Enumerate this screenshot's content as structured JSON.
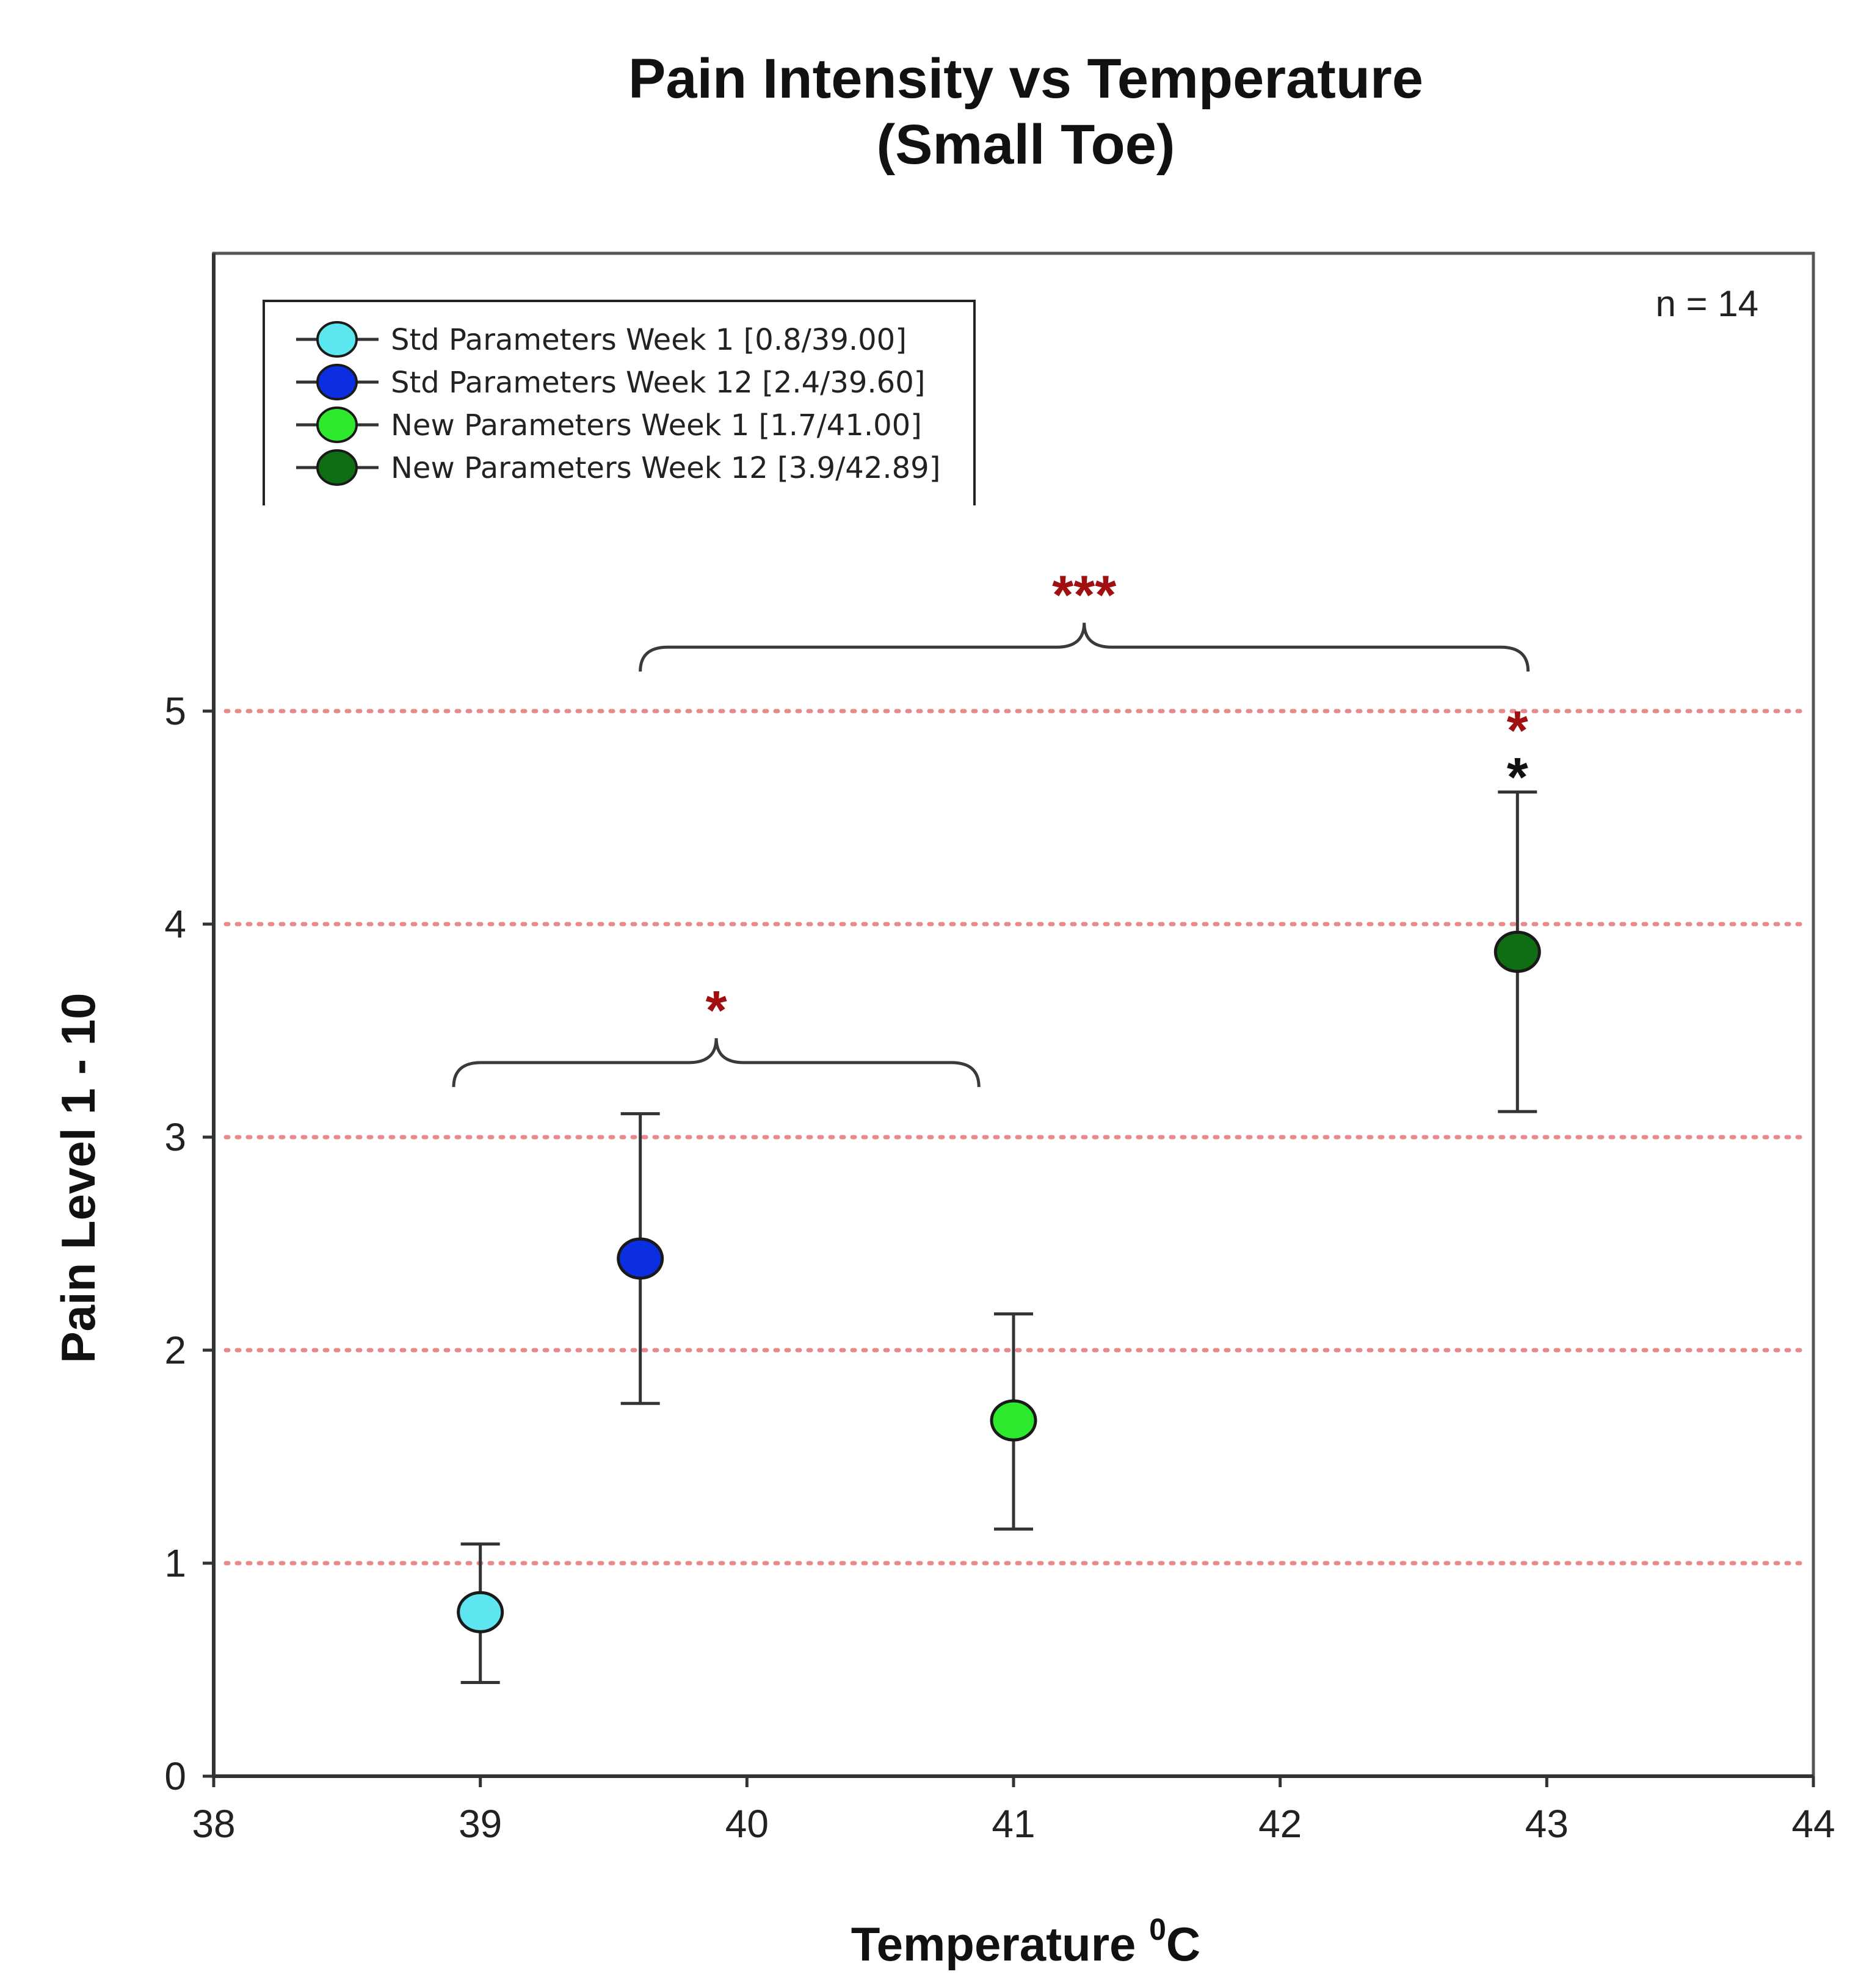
{
  "chart_data": {
    "type": "scatter",
    "title_line1": "Pain Intensity vs Temperature",
    "title_line2": "(Small Toe)",
    "xlabel_main": "Temperature ",
    "xlabel_sup": "0",
    "xlabel_unit": "C",
    "ylabel": "Pain Level 1 - 10",
    "xlim": [
      38,
      44
    ],
    "ylim": [
      0,
      7
    ],
    "xticks": [
      38,
      39,
      40,
      41,
      42,
      43,
      44
    ],
    "yticks": [
      0,
      1,
      2,
      3,
      4,
      5
    ],
    "gridlines_y": [
      1,
      2,
      3,
      4,
      5
    ],
    "grid_color": "#e88a8a",
    "annotation": "n = 14",
    "series": [
      {
        "name": "Std Parameters Week 1 [0.8/39.00]",
        "x": 39.0,
        "y": 0.77,
        "err_low": 0.44,
        "err_high": 1.09,
        "color": "#5ee6f0"
      },
      {
        "name": "Std Parameters Week 12 [2.4/39.60]",
        "x": 39.6,
        "y": 2.43,
        "err_low": 1.75,
        "err_high": 3.11,
        "color": "#0a2ee0"
      },
      {
        "name": "New Parameters Week 1 [1.7/41.00]",
        "x": 41.0,
        "y": 1.67,
        "err_low": 1.16,
        "err_high": 2.17,
        "color": "#2ee82e"
      },
      {
        "name": "New Parameters Week 12 [3.9/42.89]",
        "x": 42.89,
        "y": 3.87,
        "err_low": 3.12,
        "err_high": 4.62,
        "color": "#0f6e14"
      }
    ],
    "significance": [
      {
        "label": "*",
        "x_from": 38.9,
        "x_to": 40.87,
        "y": 3.35,
        "color": "#a01010"
      },
      {
        "label": "***",
        "x_from": 39.6,
        "x_to": 42.93,
        "y": 5.3,
        "color": "#a01010"
      }
    ],
    "point_marks": [
      {
        "label": "*",
        "x": 42.89,
        "y": 4.95,
        "color": "#a01010"
      },
      {
        "label": "*",
        "x": 42.89,
        "y": 4.73,
        "color": "#111111"
      }
    ]
  }
}
